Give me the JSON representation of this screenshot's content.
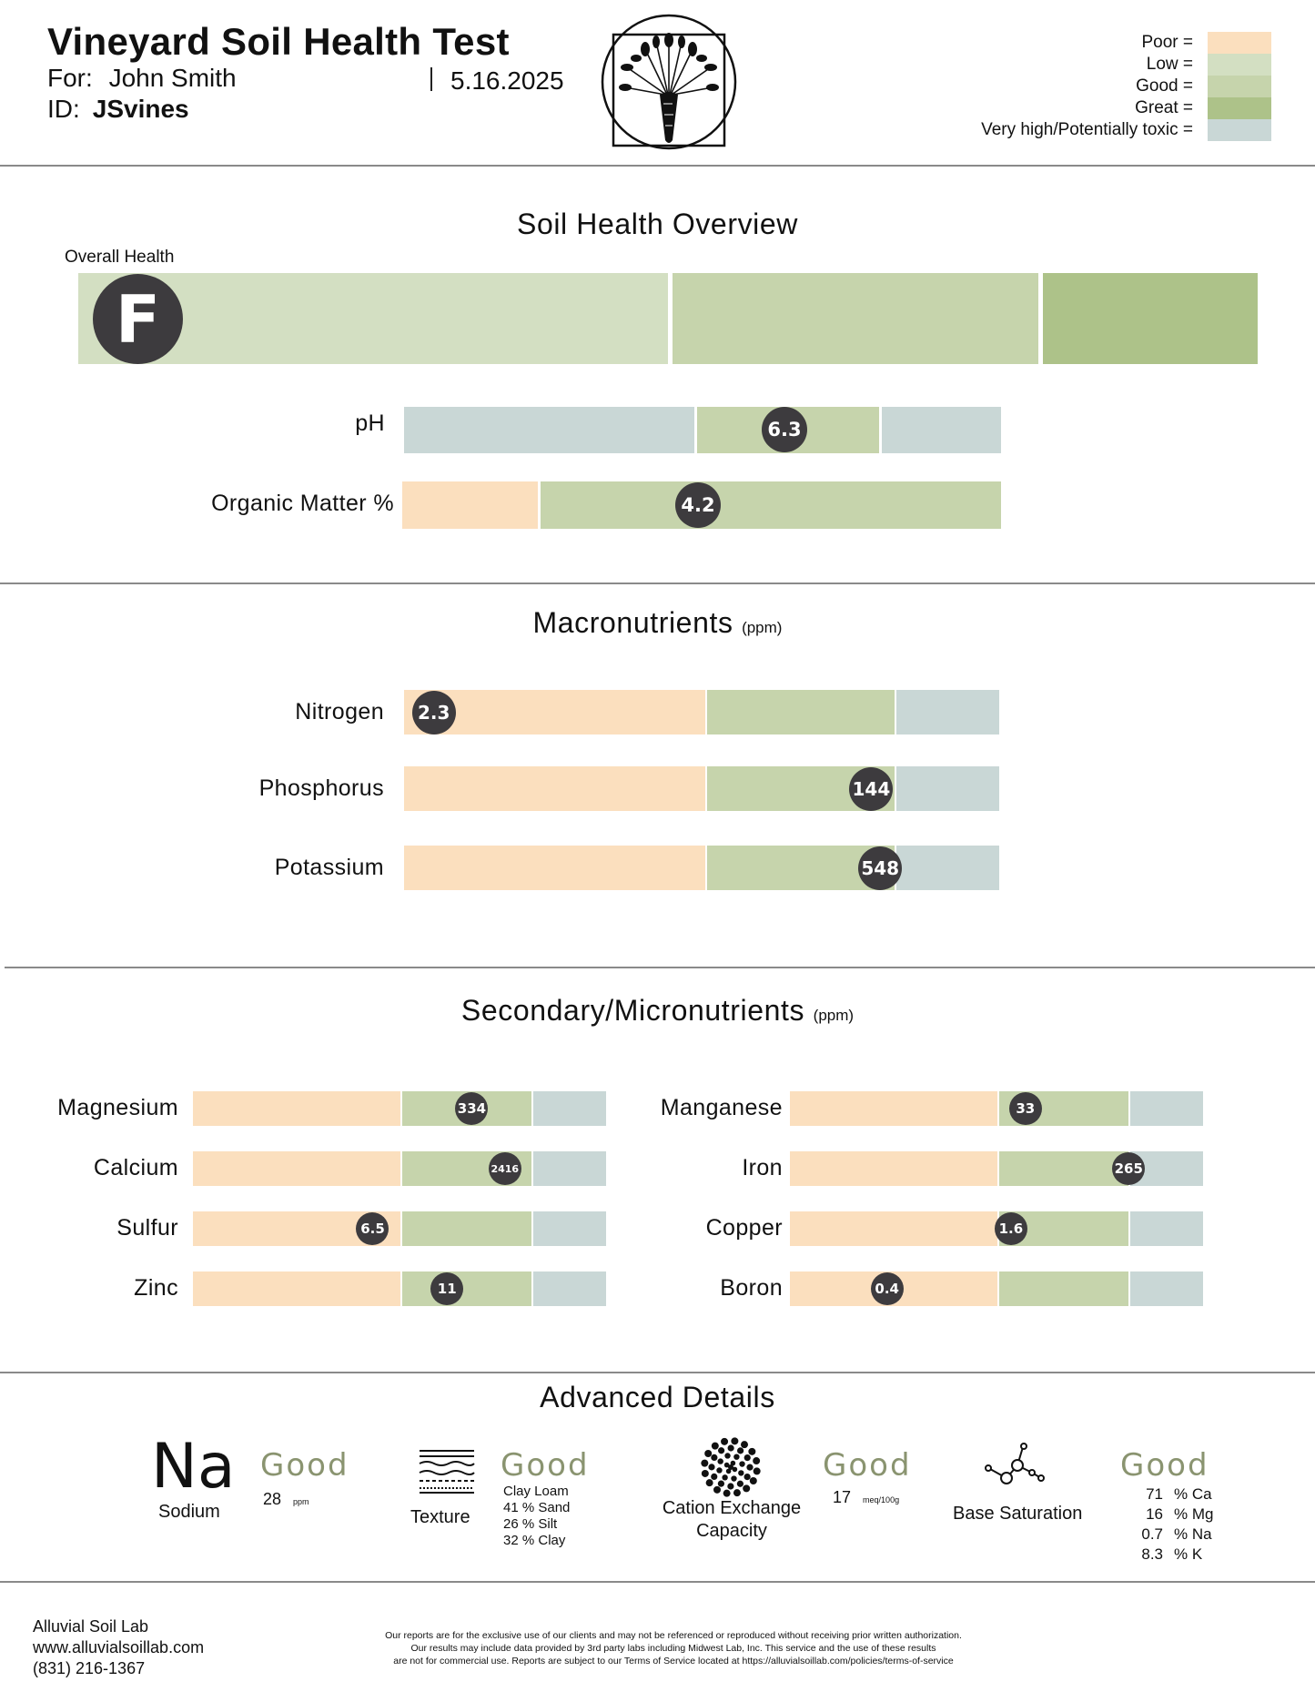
{
  "header": {
    "title": "Vineyard Soil Health Test",
    "for_label": "For:",
    "client_name": "John Smith",
    "date": "5.16.2025",
    "id_label": "ID:",
    "id_value": "JSvines",
    "logo_icon": "carrot-logo-icon"
  },
  "legend": [
    {
      "label": "Poor =",
      "color": "#fbdfbe"
    },
    {
      "label": "Low =",
      "color": "#d3dfc2"
    },
    {
      "label": "Good =",
      "color": "#c6d4ac"
    },
    {
      "label": "Great =",
      "color": "#adc289"
    },
    {
      "label": "Very high/Potentially toxic =",
      "color": "#c9d7d6"
    }
  ],
  "overview": {
    "title": "Soil Health Overview",
    "overall_label": "Overall Health",
    "overall_grade": "F",
    "ph": {
      "label": "pH",
      "value": "6.3",
      "level": 0.64
    },
    "organic": {
      "label": "Organic Matter %",
      "value": "4.2",
      "level": 0.49
    }
  },
  "macro": {
    "title": "Macronutrients",
    "unit": "(ppm)",
    "rows": [
      {
        "label": "Nitrogen",
        "value": "2.3",
        "level": 0.05
      },
      {
        "label": "Phosphorus",
        "value": "144",
        "level": 0.785
      },
      {
        "label": "Potassium",
        "value": "548",
        "level": 0.8
      }
    ]
  },
  "micro": {
    "title": "Secondary/Micronutrients",
    "unit": "(ppm)",
    "left": [
      {
        "label": "Magnesium",
        "value": "334",
        "level": 0.675
      },
      {
        "label": "Calcium",
        "value": "2416",
        "level": 0.755
      },
      {
        "label": "Sulfur",
        "value": "6.5",
        "level": 0.435
      },
      {
        "label": "Zinc",
        "value": "11",
        "level": 0.615
      }
    ],
    "right": [
      {
        "label": "Manganese",
        "value": "33",
        "level": 0.57
      },
      {
        "label": "Iron",
        "value": "265",
        "level": 0.82
      },
      {
        "label": "Copper",
        "value": "1.6",
        "level": 0.535
      },
      {
        "label": "Boron",
        "value": "0.4",
        "level": 0.235
      }
    ]
  },
  "advanced": {
    "title": "Advanced Details",
    "sodium": {
      "symbol": "Na",
      "label": "Sodium",
      "rating": "Good",
      "value": "28",
      "unit": "ppm"
    },
    "texture": {
      "label": "Texture",
      "rating": "Good",
      "type": "Clay Loam",
      "lines": [
        "41 % Sand",
        "26 % Silt",
        "32 % Clay"
      ],
      "icon": "soil-layers-icon"
    },
    "cec": {
      "label_1": "Cation Exchange",
      "label_2": "Capacity",
      "rating": "Good",
      "value": "17",
      "unit": "meq/100g",
      "icon": "dotted-circle-icon"
    },
    "base": {
      "label": "Base Saturation",
      "rating": "Good",
      "icon": "molecule-icon",
      "lines": [
        {
          "num": "71",
          "unit": "% Ca"
        },
        {
          "num": "16",
          "unit": "% Mg"
        },
        {
          "num": "0.7",
          "unit": "% Na"
        },
        {
          "num": "8.3",
          "unit": "% K"
        }
      ]
    }
  },
  "footer": {
    "company": "Alluvial Soil Lab",
    "website": "www.alluvialsoillab.com",
    "phone": "(831) 216-1367",
    "disclaimer_1": "Our reports are for the exclusive use of our clients and may not be referenced or reproduced without receiving prior written authorization.",
    "disclaimer_2": "Our results may include data provided by 3rd party labs including Midwest Lab, Inc. This service and the use of these results",
    "disclaimer_3": "are not for commercial use. Reports are subject to our Terms of Service located at https://alluvialsoillab.com/policies/terms-of-service"
  }
}
